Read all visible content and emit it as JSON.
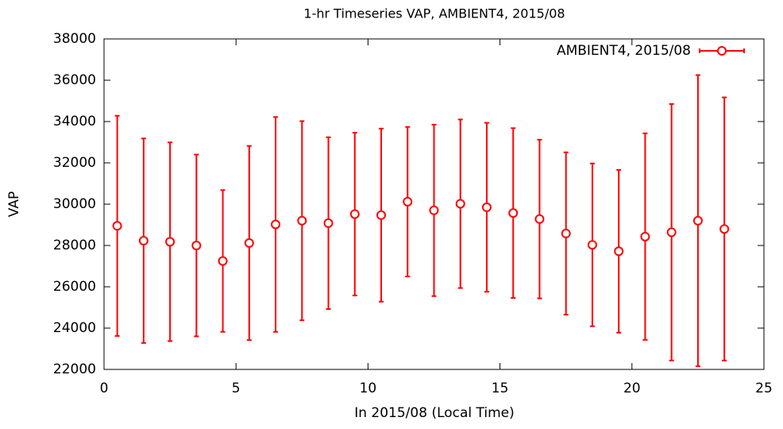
{
  "chart_data": {
    "type": "errorbar",
    "title": "1-hr Timeseries VAP, AMBIENT4, 2015/08",
    "x_label": "In 2015/08 (Local Time)",
    "y_label": "VAP",
    "x": [
      0.5,
      1.5,
      2.5,
      3.5,
      4.5,
      5.5,
      6.5,
      7.5,
      8.5,
      9.5,
      10.5,
      11.5,
      12.5,
      13.5,
      14.5,
      15.5,
      16.5,
      17.5,
      18.5,
      19.5,
      20.5,
      21.5,
      22.5,
      23.5
    ],
    "series": [
      {
        "name": "AMBIENT4, 2015/08",
        "color": "#ff0000",
        "values": [
          28950,
          28230,
          28180,
          28000,
          27250,
          28120,
          29020,
          29200,
          29080,
          29520,
          29470,
          30120,
          29700,
          30020,
          29850,
          29570,
          29280,
          28580,
          28030,
          27720,
          28430,
          28640,
          29200,
          28800
        ],
        "errors": [
          5330,
          4950,
          4810,
          4400,
          3430,
          4700,
          5200,
          4820,
          4160,
          3940,
          4190,
          3620,
          4150,
          4080,
          4090,
          4110,
          3840,
          3930,
          3940,
          3940,
          5000,
          6210,
          7050,
          6370
        ]
      }
    ],
    "xlim": [
      0,
      25
    ],
    "xticks": [
      0,
      5,
      10,
      15,
      20,
      25
    ],
    "ylim": [
      22000,
      38000
    ],
    "yticks": [
      22000,
      24000,
      26000,
      28000,
      30000,
      32000,
      34000,
      36000,
      38000
    ],
    "grid": false,
    "legend": "top-right"
  }
}
